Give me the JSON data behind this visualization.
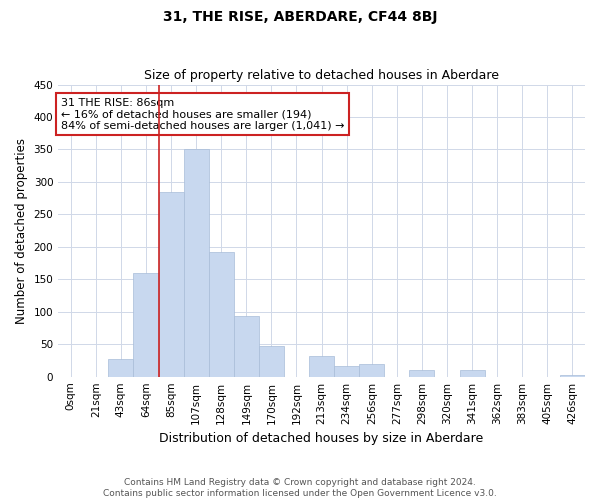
{
  "title": "31, THE RISE, ABERDARE, CF44 8BJ",
  "subtitle": "Size of property relative to detached houses in Aberdare",
  "xlabel": "Distribution of detached houses by size in Aberdare",
  "ylabel": "Number of detached properties",
  "bin_labels": [
    "0sqm",
    "21sqm",
    "43sqm",
    "64sqm",
    "85sqm",
    "107sqm",
    "128sqm",
    "149sqm",
    "170sqm",
    "192sqm",
    "213sqm",
    "234sqm",
    "256sqm",
    "277sqm",
    "298sqm",
    "320sqm",
    "341sqm",
    "362sqm",
    "383sqm",
    "405sqm",
    "426sqm"
  ],
  "bar_heights": [
    0,
    0,
    28,
    160,
    285,
    350,
    192,
    93,
    48,
    0,
    32,
    16,
    20,
    0,
    11,
    0,
    11,
    0,
    0,
    0,
    3
  ],
  "bar_color": "#c8d8ef",
  "bar_edge_color": "#a8bcd8",
  "ylim": [
    0,
    450
  ],
  "yticks": [
    0,
    50,
    100,
    150,
    200,
    250,
    300,
    350,
    400,
    450
  ],
  "annotation_title": "31 THE RISE: 86sqm",
  "annotation_line1": "← 16% of detached houses are smaller (194)",
  "annotation_line2": "84% of semi-detached houses are larger (1,041) →",
  "vline_bar_index": 4,
  "footer_line1": "Contains HM Land Registry data © Crown copyright and database right 2024.",
  "footer_line2": "Contains public sector information licensed under the Open Government Licence v3.0.",
  "background_color": "#ffffff",
  "grid_color": "#d0d8e8",
  "vline_color": "#cc2222",
  "box_edge_color": "#cc2222",
  "title_fontsize": 10,
  "subtitle_fontsize": 9,
  "ylabel_fontsize": 8.5,
  "xlabel_fontsize": 9,
  "tick_fontsize": 7.5,
  "annotation_fontsize": 8,
  "footer_fontsize": 6.5
}
